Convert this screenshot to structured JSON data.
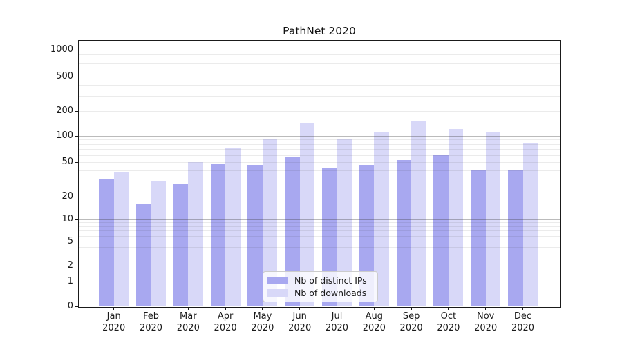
{
  "chart_data": {
    "type": "bar",
    "title": "PathNet 2020",
    "categories": [
      "Jan 2020",
      "Feb 2020",
      "Mar 2020",
      "Apr 2020",
      "May 2020",
      "Jun 2020",
      "Jul 2020",
      "Aug 2020",
      "Sep 2020",
      "Oct 2020",
      "Nov 2020",
      "Dec 2020"
    ],
    "series": [
      {
        "name": "Nb of distinct IPs",
        "color": "#a8a8f0",
        "values": [
          32,
          16,
          28,
          47,
          46,
          57,
          43,
          46,
          52,
          60,
          40,
          40
        ]
      },
      {
        "name": "Nb of downloads",
        "color": "#d8d8f8",
        "values": [
          38,
          30,
          50,
          72,
          90,
          142,
          90,
          112,
          150,
          120,
          112,
          82
        ]
      }
    ],
    "y_axis": {
      "scale": "symlog",
      "ticks": [
        0,
        1,
        2,
        5,
        10,
        20,
        50,
        100,
        200,
        500,
        1000
      ],
      "range": [
        0,
        1000
      ],
      "minor_gridlines": [
        2,
        3,
        4,
        5,
        6,
        7,
        8,
        9,
        20,
        30,
        40,
        50,
        60,
        70,
        80,
        90,
        200,
        300,
        400,
        500,
        600,
        700,
        800,
        900
      ],
      "major_gridlines": [
        1,
        10,
        100,
        1000
      ]
    },
    "xlabel": "",
    "ylabel": "",
    "grid": "on",
    "legend_position": "lower center (inside plot)"
  }
}
